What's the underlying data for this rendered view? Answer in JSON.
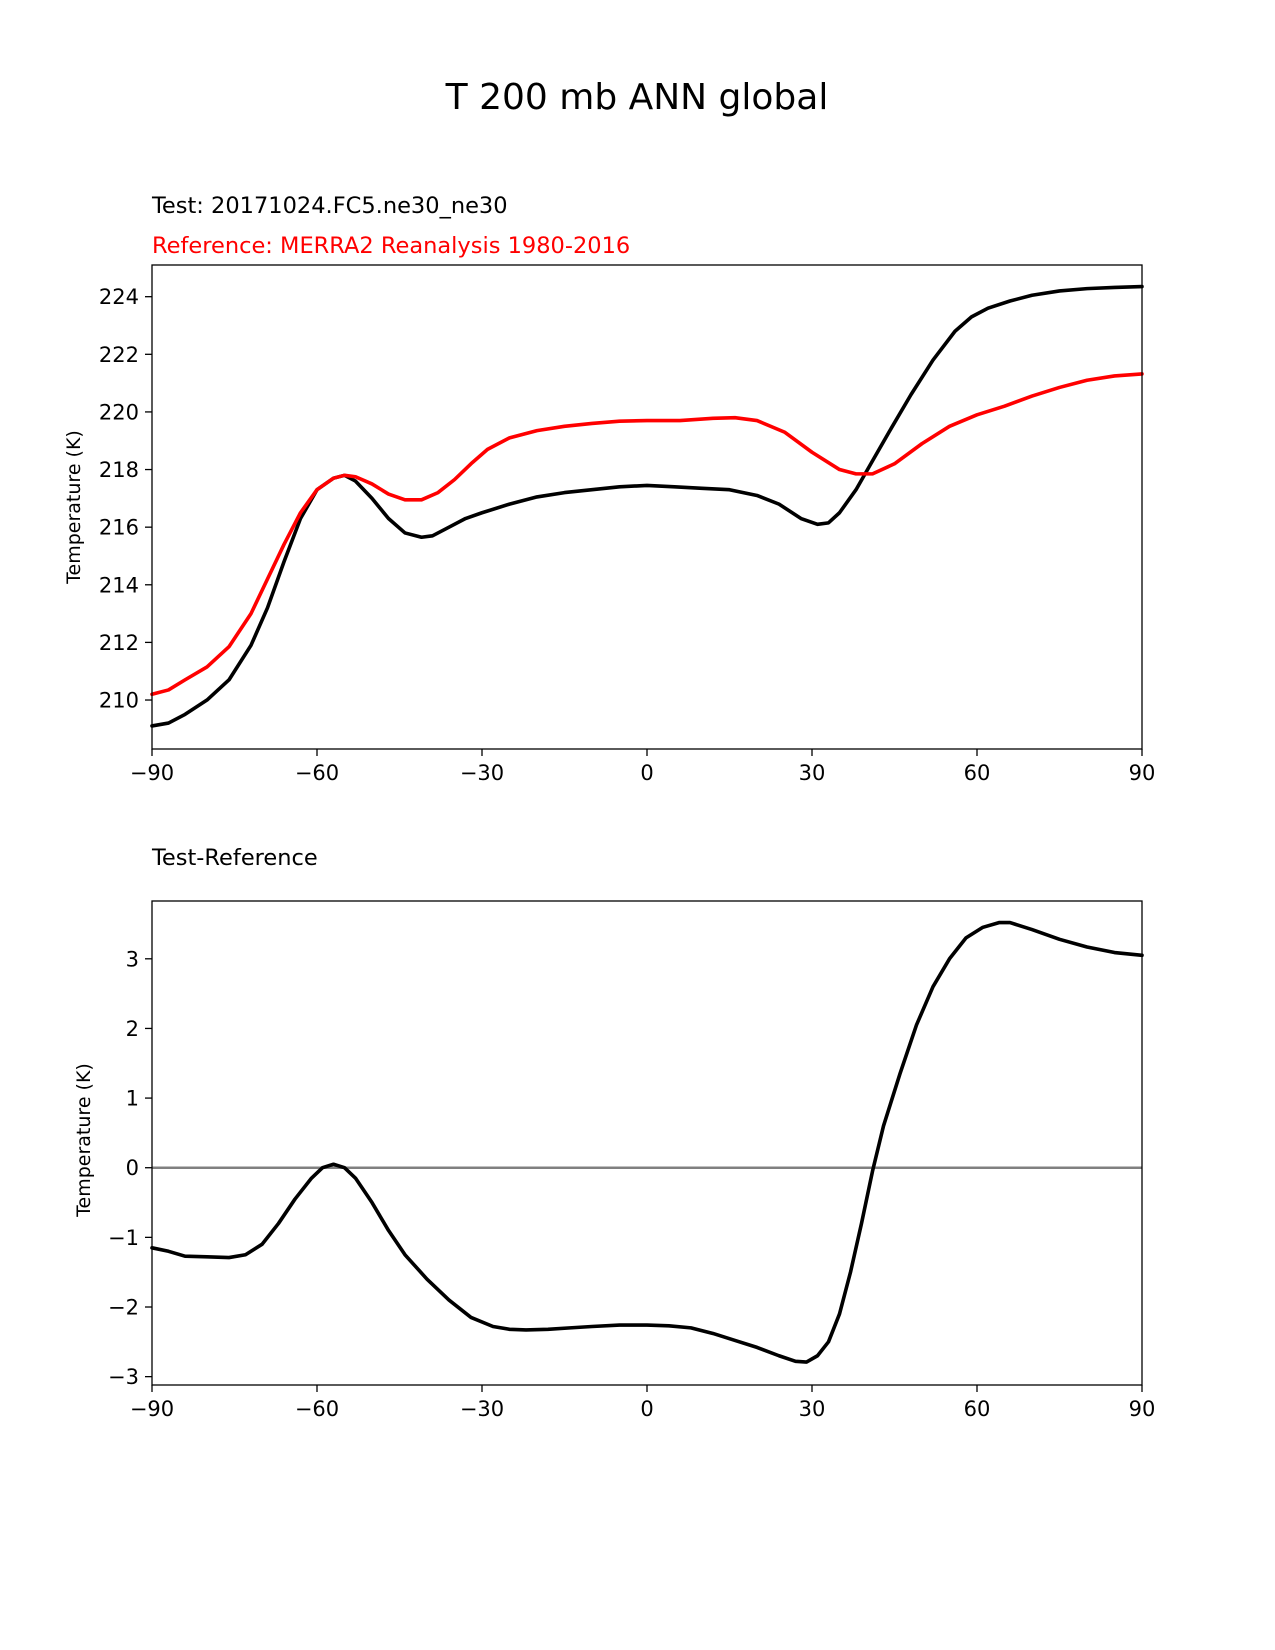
{
  "figure_title": "T 200 mb ANN global",
  "chart_data": [
    {
      "type": "line",
      "title_left": "Test: 20171024.FC5.ne30_ne30",
      "subtitle_left": "Reference: MERRA2 Reanalysis 1980-2016",
      "xlabel": "",
      "ylabel": "Temperature (K)",
      "xlim": [
        -90,
        90
      ],
      "ylim": [
        208.3,
        225.1
      ],
      "xticks": [
        -90,
        -60,
        -30,
        0,
        30,
        60,
        90
      ],
      "xtick_labels": [
        "−90",
        "−60",
        "−30",
        "0",
        "30",
        "60",
        "90"
      ],
      "yticks": [
        210,
        212,
        214,
        216,
        218,
        220,
        222,
        224
      ],
      "ytick_labels": [
        "210",
        "212",
        "214",
        "216",
        "218",
        "220",
        "222",
        "224"
      ],
      "grid": false,
      "series": [
        {
          "name": "Test",
          "color": "#000000",
          "x": [
            -90,
            -87,
            -84,
            -80,
            -76,
            -72,
            -69,
            -66,
            -63,
            -60,
            -57,
            -55,
            -53,
            -50,
            -47,
            -44,
            -41,
            -39,
            -36,
            -33,
            -30,
            -25,
            -20,
            -15,
            -10,
            -5,
            0,
            5,
            10,
            15,
            20,
            24,
            28,
            31,
            33,
            35,
            38,
            41,
            44,
            48,
            52,
            56,
            59,
            62,
            66,
            70,
            75,
            80,
            85,
            90
          ],
          "y": [
            209.1,
            209.2,
            209.5,
            210.0,
            210.7,
            211.9,
            213.2,
            214.8,
            216.3,
            217.3,
            217.7,
            217.8,
            217.6,
            217.0,
            216.3,
            215.8,
            215.65,
            215.7,
            216.0,
            216.3,
            216.5,
            216.8,
            217.05,
            217.2,
            217.3,
            217.4,
            217.45,
            217.4,
            217.35,
            217.3,
            217.1,
            216.8,
            216.3,
            216.1,
            216.15,
            216.5,
            217.3,
            218.3,
            219.3,
            220.6,
            221.8,
            222.8,
            223.3,
            223.6,
            223.85,
            224.05,
            224.2,
            224.28,
            224.32,
            224.35
          ]
        },
        {
          "name": "Reference",
          "color": "#ff0000",
          "x": [
            -90,
            -87,
            -84,
            -80,
            -76,
            -72,
            -69,
            -66,
            -63,
            -60,
            -57,
            -55,
            -53,
            -50,
            -47,
            -44,
            -41,
            -38,
            -35,
            -32,
            -29,
            -25,
            -20,
            -15,
            -10,
            -5,
            0,
            6,
            12,
            16,
            20,
            25,
            30,
            35,
            38,
            41,
            45,
            50,
            55,
            60,
            65,
            70,
            75,
            80,
            85,
            90
          ],
          "y": [
            210.2,
            210.35,
            210.7,
            211.15,
            211.85,
            213.0,
            214.2,
            215.4,
            216.5,
            217.3,
            217.7,
            217.8,
            217.75,
            217.5,
            217.15,
            216.95,
            216.95,
            217.2,
            217.65,
            218.2,
            218.7,
            219.1,
            219.35,
            219.5,
            219.6,
            219.68,
            219.7,
            219.7,
            219.78,
            219.8,
            219.7,
            219.3,
            218.6,
            218.0,
            217.85,
            217.85,
            218.2,
            218.9,
            219.5,
            219.9,
            220.2,
            220.55,
            220.85,
            221.1,
            221.25,
            221.32
          ]
        }
      ]
    },
    {
      "type": "line",
      "title_left": "Test-Reference",
      "xlabel": "",
      "ylabel": "Temperature (K)",
      "xlim": [
        -90,
        90
      ],
      "ylim": [
        -3.12,
        3.83
      ],
      "xticks": [
        -90,
        -60,
        -30,
        0,
        30,
        60,
        90
      ],
      "xtick_labels": [
        "−90",
        "−60",
        "−30",
        "0",
        "30",
        "60",
        "90"
      ],
      "yticks": [
        -3,
        -2,
        -1,
        0,
        1,
        2,
        3
      ],
      "ytick_labels": [
        "−3",
        "−2",
        "−1",
        "0",
        "1",
        "2",
        "3"
      ],
      "grid": false,
      "zero_line": {
        "value": 0,
        "color": "#808080"
      },
      "series": [
        {
          "name": "Test-Reference",
          "color": "#000000",
          "x": [
            -90,
            -87,
            -84,
            -80,
            -76,
            -73,
            -70,
            -67,
            -64,
            -61,
            -59,
            -57,
            -55,
            -53,
            -50,
            -47,
            -44,
            -40,
            -36,
            -32,
            -28,
            -25,
            -22,
            -18,
            -14,
            -10,
            -5,
            0,
            4,
            8,
            12,
            16,
            20,
            24,
            27,
            29,
            31,
            33,
            35,
            37,
            39,
            41,
            43,
            46,
            49,
            52,
            55,
            58,
            61,
            64,
            66,
            70,
            75,
            80,
            85,
            90
          ],
          "y": [
            -1.15,
            -1.2,
            -1.27,
            -1.28,
            -1.29,
            -1.25,
            -1.1,
            -0.8,
            -0.45,
            -0.15,
            0.0,
            0.05,
            0.0,
            -0.15,
            -0.5,
            -0.9,
            -1.25,
            -1.6,
            -1.9,
            -2.15,
            -2.28,
            -2.32,
            -2.33,
            -2.32,
            -2.3,
            -2.28,
            -2.26,
            -2.26,
            -2.27,
            -2.3,
            -2.38,
            -2.48,
            -2.58,
            -2.7,
            -2.78,
            -2.79,
            -2.7,
            -2.5,
            -2.1,
            -1.5,
            -0.8,
            -0.05,
            0.6,
            1.35,
            2.05,
            2.6,
            3.0,
            3.3,
            3.45,
            3.52,
            3.52,
            3.42,
            3.28,
            3.17,
            3.09,
            3.05
          ]
        }
      ]
    }
  ]
}
